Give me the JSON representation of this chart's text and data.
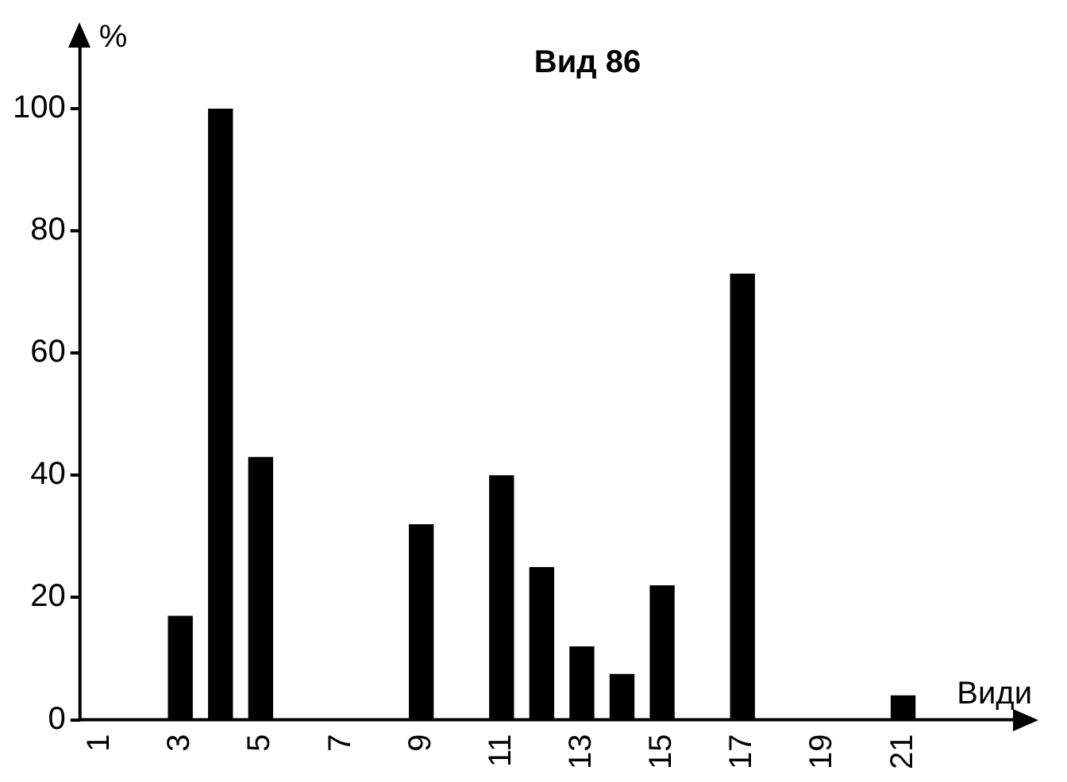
{
  "chart_data": {
    "type": "bar",
    "title": "Вид 86",
    "xlabel": "Види",
    "ylabel": "%",
    "categories": [
      "1",
      null,
      "3",
      null,
      "5",
      null,
      "7",
      null,
      "9",
      null,
      "11",
      null,
      "13",
      null,
      "15",
      null,
      "17",
      null,
      "19",
      null,
      "21",
      null,
      null
    ],
    "values": [
      null,
      null,
      17,
      100,
      43,
      null,
      null,
      null,
      32,
      null,
      40,
      25,
      12,
      7.5,
      22,
      null,
      73,
      null,
      null,
      null,
      4,
      null,
      null
    ],
    "color": "#000000",
    "ylim": [
      0,
      110
    ],
    "yticks": [
      0,
      20,
      40,
      60,
      80,
      100
    ],
    "grid": false,
    "legend": false
  }
}
